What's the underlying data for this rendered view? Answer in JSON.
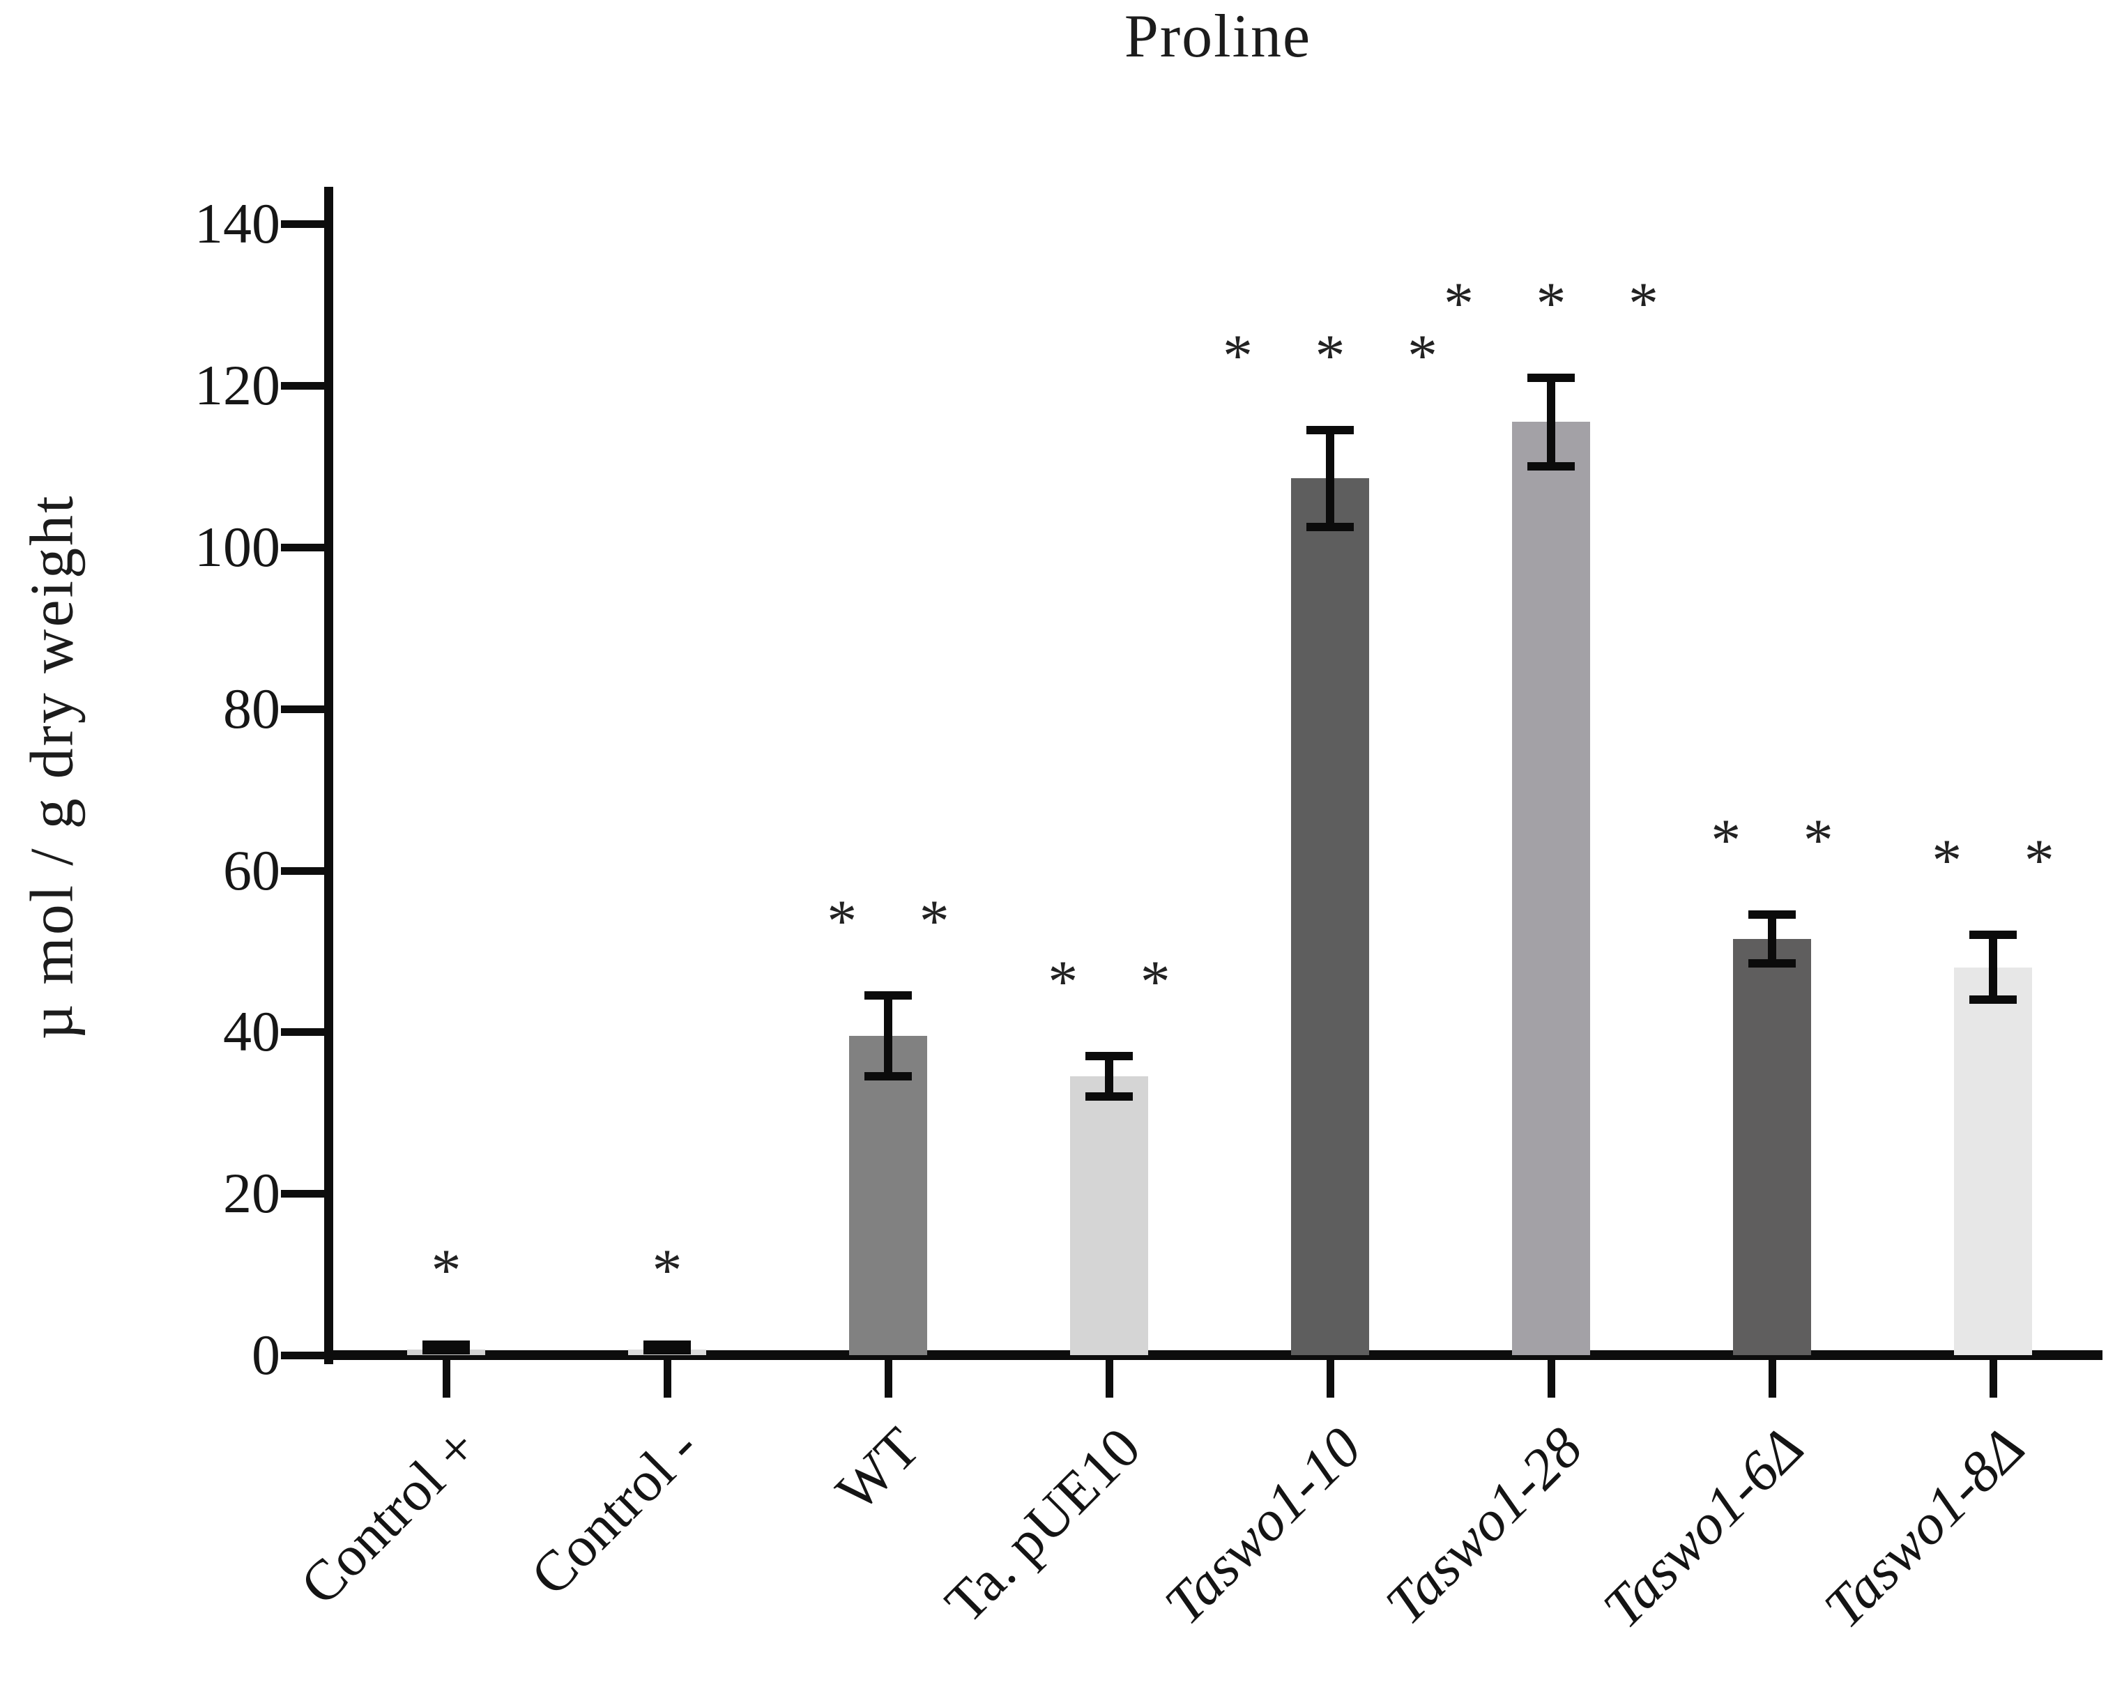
{
  "chart_data": {
    "type": "bar",
    "title": "Proline",
    "xlabel": "",
    "ylabel": "µ mol / g dry weight",
    "ylim": [
      0,
      145
    ],
    "yticks": [
      0,
      20,
      40,
      60,
      80,
      100,
      120,
      140
    ],
    "grid": false,
    "legend": "none",
    "categories": [
      "Control +",
      "Control -",
      "WT",
      "Ta. pUE10",
      "Taswo1-10",
      "Taswo1-28",
      "Taswo1-6Δ",
      "Taswo1-8Δ"
    ],
    "values": [
      0.7,
      0.7,
      39.5,
      34.5,
      108.5,
      115.5,
      51.5,
      48
    ],
    "errors": [
      0.6,
      0.6,
      5,
      2.5,
      6,
      5.5,
      3,
      4
    ],
    "significance": [
      "*",
      "*",
      "**",
      "**",
      "***",
      "***",
      "**",
      "**"
    ],
    "bar_colors": [
      "#d2d2d2",
      "#dcdcdc",
      "#818181",
      "#d5d5d5",
      "#5e5e5e",
      "#a3a1a6",
      "#5f5e5e",
      "#e7e7e7"
    ],
    "label_italic": [
      false,
      false,
      false,
      false,
      true,
      true,
      true,
      true
    ],
    "error_bar_color": "#0b0b0b",
    "axis_color": "#0d0d0d"
  }
}
